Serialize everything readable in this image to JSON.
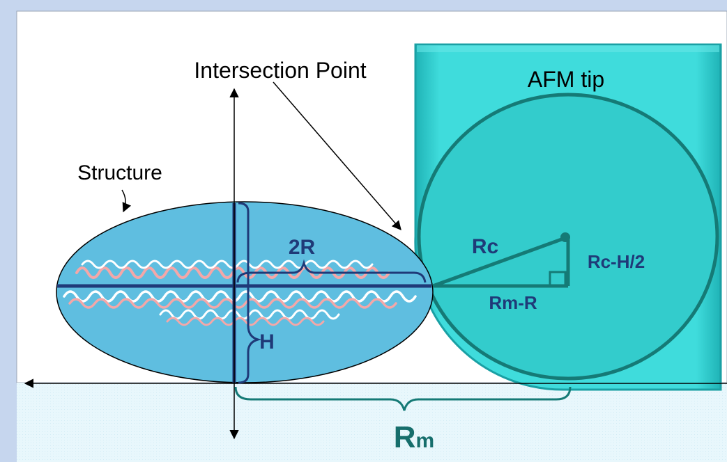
{
  "labels": {
    "intersection_point": "Intersection Point",
    "afm_tip": "AFM tip",
    "structure": "Structure",
    "two_r": "2R",
    "rc": "Rc",
    "rc_minus_half_h": "Rc-H/2",
    "rm_minus_r": "Rm-R",
    "h": "H",
    "rm_main": "R",
    "rm_sub": "m"
  },
  "colors": {
    "page_background": "#c6d6ee",
    "panel": "#ffffff",
    "substrate": "#e6f6fb",
    "tip_fill": "#3cd9d9",
    "sphere_fill": "#33cccc",
    "sphere_stroke": "#157a76",
    "ellipse_fill": "#5fbee0",
    "label_navy": "#1f3a78",
    "label_teal": "#166e6c",
    "dna_pink": "#f4a7a8",
    "dna_white": "#ffffff"
  },
  "icons": {
    "arrowhead": "arrowhead-icon",
    "right_angle": "right-angle-marker-icon",
    "tip_center": "tip-center-dot-icon"
  }
}
